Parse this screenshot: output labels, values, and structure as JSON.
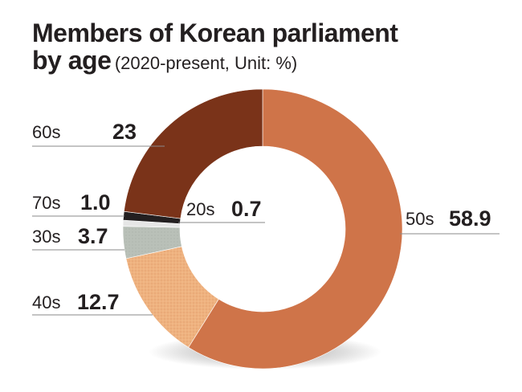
{
  "title": {
    "line1": "Members of Korean parliament",
    "line2_bold": "by age",
    "line2_sub": "(2020-present, Unit: %)"
  },
  "chart_data": {
    "type": "pie",
    "donut": true,
    "categories": [
      "50s",
      "40s",
      "30s",
      "20s",
      "70s",
      "60s"
    ],
    "values": [
      58.9,
      12.7,
      3.7,
      0.7,
      1.0,
      23
    ],
    "value_labels": [
      "58.9",
      "12.7",
      "3.7",
      "0.7",
      "1.0",
      "23"
    ],
    "colors": [
      "#cf7449",
      "#efb27f",
      "#b9c0b8",
      "#e6e6e6",
      "#231f20",
      "#7a3319"
    ],
    "title": "Members of Korean parliament by age",
    "subtitle": "(2020-present, Unit: %)"
  }
}
